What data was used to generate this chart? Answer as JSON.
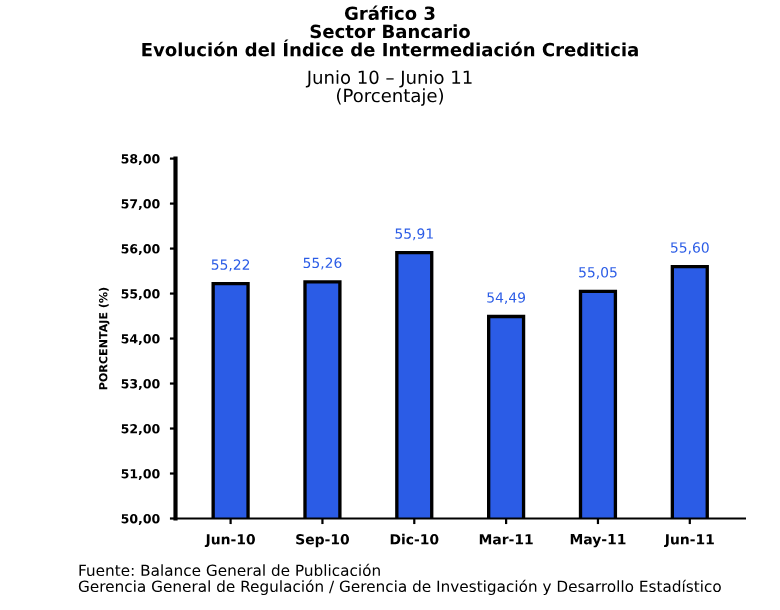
{
  "chart_data": {
    "type": "bar",
    "title": "Gráfico 3\nSector Bancario\nEvolución del Índice de Intermediación Crediticia",
    "subtitle": "Junio 10 – Junio 11\n(Porcentaje)",
    "ylabel": "PORCENTAJE (%)",
    "categories": [
      "Jun-10",
      "Sep-10",
      "Dic-10",
      "Mar-11",
      "May-11",
      "Jun-11"
    ],
    "values": [
      55.22,
      55.26,
      55.91,
      54.49,
      55.05,
      55.6
    ],
    "value_labels": [
      "55,22",
      "55,26",
      "55,91",
      "54,49",
      "55,05",
      "55,60"
    ],
    "color": "#2b5ce6",
    "ylim": [
      50,
      58
    ],
    "yticks": [
      {
        "value": 50,
        "label": "50,00"
      },
      {
        "value": 51,
        "label": "51,00"
      },
      {
        "value": 52,
        "label": "52,00"
      },
      {
        "value": 53,
        "label": "53,00"
      },
      {
        "value": 54,
        "label": "54,00"
      },
      {
        "value": 55,
        "label": "55,00"
      },
      {
        "value": 56,
        "label": "56,00"
      },
      {
        "value": 57,
        "label": "57,00"
      },
      {
        "value": 58,
        "label": "58,00"
      }
    ],
    "grid": false,
    "annotations": [
      "Fuente: Balance General de Publicación\nGerencia General de Regulación / Gerencia de Investigación y Desarrollo Estadístico"
    ]
  }
}
